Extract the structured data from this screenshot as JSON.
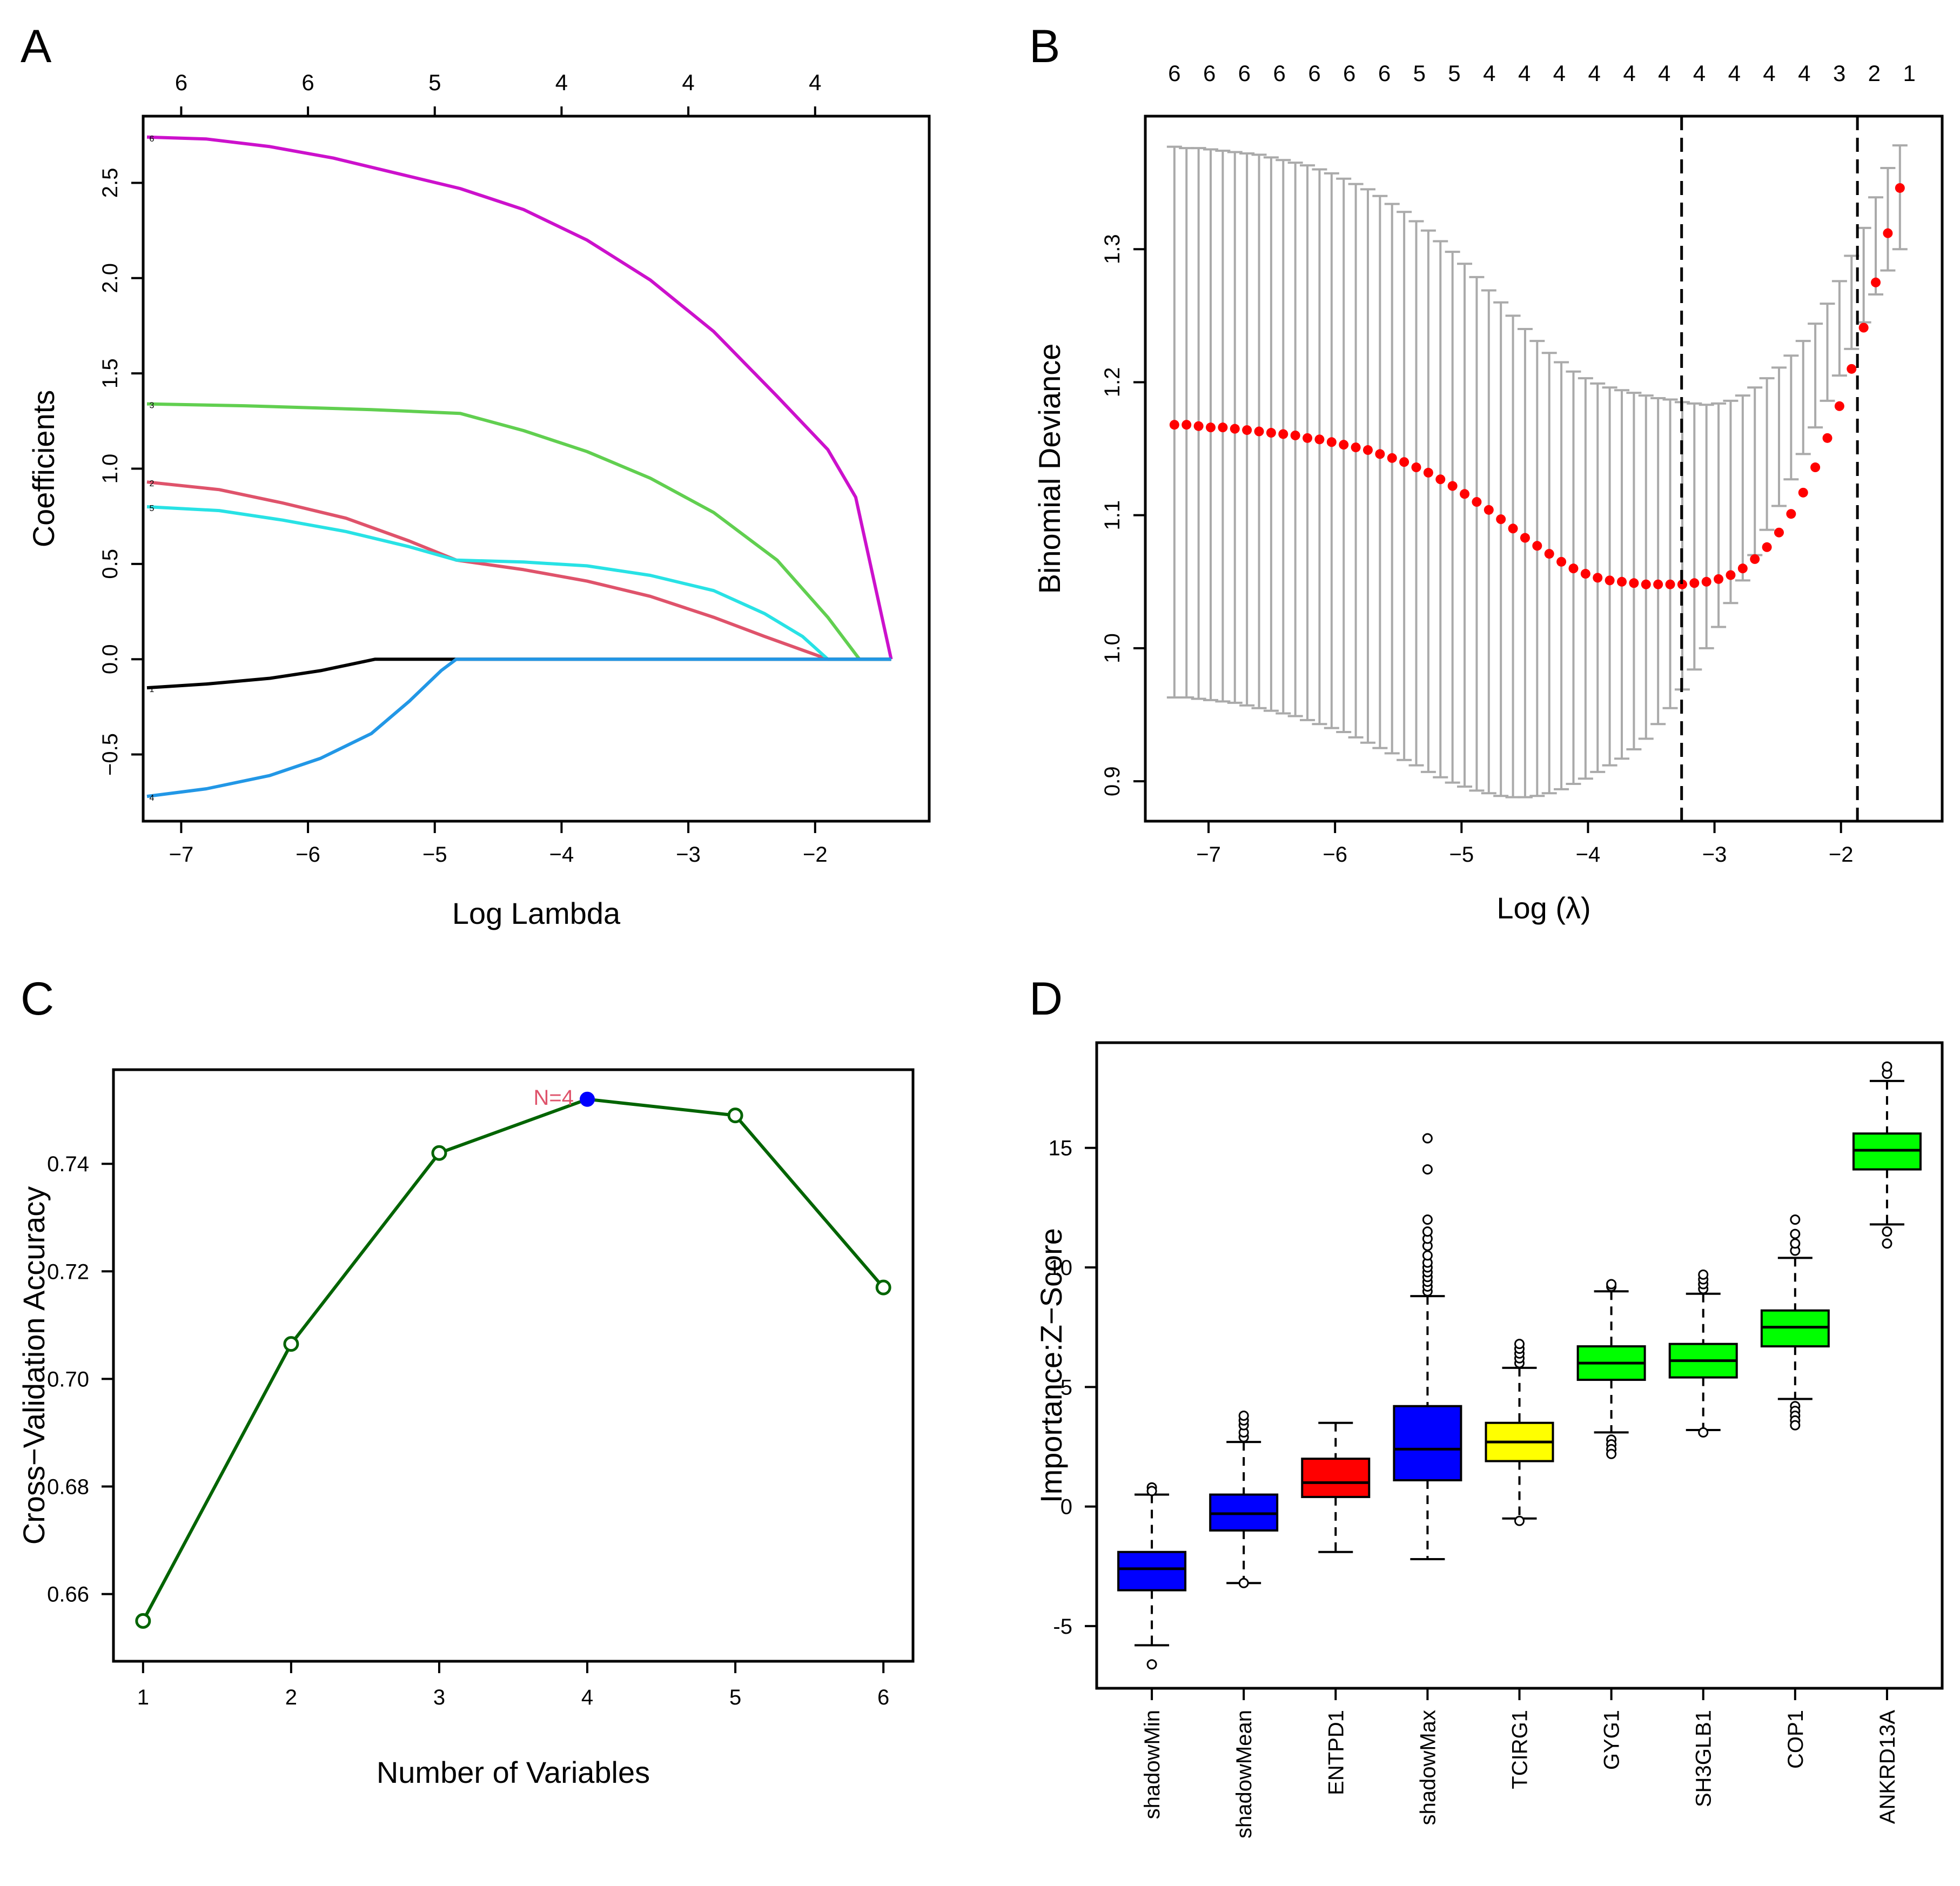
{
  "colors": {
    "magenta": "#cc11cc",
    "green_light": "#61cf50",
    "red_soft": "#df536b",
    "cyan": "#28e2e5",
    "black": "#000000",
    "blue_light": "#2297e6",
    "grey": "#aaaaaa",
    "red_point": "#ff0000",
    "dark_green": "#006400",
    "highlight_blue": "#0000ff",
    "annotation_red": "#df536b",
    "box_blue": "#0000ff",
    "box_red": "#ff0000",
    "box_yellow": "#ffff00",
    "box_green": "#00ff00"
  },
  "chart_data": [
    {
      "panel": "A",
      "type": "line",
      "xlabel": "Log Lambda",
      "ylabel": "Coefficients",
      "xlim": [
        -7.3,
        -1.1
      ],
      "ylim": [
        -0.85,
        2.85
      ],
      "x_ticks": [
        -7,
        -6,
        -5,
        -4,
        -3,
        -2
      ],
      "x_tick_labels": [
        "−7",
        "−6",
        "−5",
        "−4",
        "−3",
        "−2"
      ],
      "y_ticks": [
        -0.5,
        0.0,
        0.5,
        1.0,
        1.5,
        2.0,
        2.5
      ],
      "y_tick_labels": [
        "−0.5",
        "0.0",
        "0.5",
        "1.0",
        "1.5",
        "2.0",
        "2.5"
      ],
      "top_axis": {
        "positions": [
          -7,
          -6,
          -5,
          -4,
          -3,
          -2
        ],
        "labels": [
          "6",
          "6",
          "5",
          "4",
          "4",
          "4"
        ]
      },
      "series": [
        {
          "name": "6",
          "color_key": "magenta",
          "x": [
            -7.27,
            -6.8,
            -6.3,
            -5.8,
            -5.3,
            -4.8,
            -4.3,
            -3.8,
            -3.3,
            -2.8,
            -2.3,
            -1.9,
            -1.68,
            -1.4
          ],
          "y": [
            2.74,
            2.73,
            2.69,
            2.63,
            2.55,
            2.47,
            2.36,
            2.2,
            1.99,
            1.72,
            1.38,
            1.1,
            0.85,
            0.0
          ]
        },
        {
          "name": "3",
          "color_key": "green_light",
          "x": [
            -7.27,
            -6.5,
            -5.5,
            -4.8,
            -4.3,
            -3.8,
            -3.3,
            -2.8,
            -2.3,
            -1.9,
            -1.65,
            -1.4
          ],
          "y": [
            1.34,
            1.33,
            1.31,
            1.29,
            1.2,
            1.09,
            0.95,
            0.77,
            0.52,
            0.22,
            0.0,
            0.0
          ]
        },
        {
          "name": "2",
          "color_key": "red_soft",
          "x": [
            -7.27,
            -6.7,
            -6.2,
            -5.7,
            -5.2,
            -4.83,
            -4.3,
            -3.8,
            -3.3,
            -2.8,
            -2.4,
            -1.9
          ],
          "y": [
            0.93,
            0.89,
            0.82,
            0.74,
            0.62,
            0.52,
            0.47,
            0.41,
            0.33,
            0.22,
            0.12,
            0.0
          ]
        },
        {
          "name": "5",
          "color_key": "cyan",
          "x": [
            -7.27,
            -6.7,
            -6.2,
            -5.7,
            -5.2,
            -4.83,
            -4.3,
            -3.8,
            -3.3,
            -2.8,
            -2.4,
            -2.1,
            -1.9,
            -1.4
          ],
          "y": [
            0.8,
            0.78,
            0.73,
            0.67,
            0.59,
            0.52,
            0.51,
            0.49,
            0.44,
            0.36,
            0.24,
            0.12,
            0.0,
            0.0
          ]
        },
        {
          "name": "1",
          "color_key": "black",
          "x": [
            -7.27,
            -6.8,
            -6.3,
            -5.9,
            -5.47,
            -4.83,
            -1.4
          ],
          "y": [
            -0.15,
            -0.13,
            -0.1,
            -0.06,
            0.0,
            0.0,
            0.0
          ]
        },
        {
          "name": "4",
          "color_key": "blue_light",
          "x": [
            -7.27,
            -6.8,
            -6.3,
            -5.9,
            -5.5,
            -5.2,
            -4.95,
            -4.83,
            -1.4
          ],
          "y": [
            -0.72,
            -0.68,
            -0.61,
            -0.52,
            -0.39,
            -0.22,
            -0.06,
            0.0,
            0.0
          ]
        }
      ]
    },
    {
      "panel": "B",
      "type": "scatter",
      "xlabel": "Log (λ)",
      "ylabel": "Binomial Deviance",
      "xlim": [
        -7.5,
        -1.2
      ],
      "ylim": [
        0.87,
        1.4
      ],
      "x_ticks": [
        -7,
        -6,
        -5,
        -4,
        -3,
        -2
      ],
      "x_tick_labels": [
        "−7",
        "−6",
        "−5",
        "−4",
        "−3",
        "−2"
      ],
      "y_ticks": [
        0.9,
        1.0,
        1.1,
        1.2,
        1.3
      ],
      "y_tick_labels": [
        "0.9",
        "1.0",
        "1.1",
        "1.2",
        "1.3"
      ],
      "x_start": -7.27,
      "x_step": 0.0956,
      "mean": [
        1.168,
        1.168,
        1.167,
        1.166,
        1.166,
        1.165,
        1.164,
        1.163,
        1.162,
        1.161,
        1.16,
        1.158,
        1.157,
        1.155,
        1.153,
        1.151,
        1.149,
        1.146,
        1.143,
        1.14,
        1.136,
        1.132,
        1.127,
        1.122,
        1.116,
        1.11,
        1.104,
        1.097,
        1.09,
        1.083,
        1.077,
        1.071,
        1.065,
        1.06,
        1.056,
        1.053,
        1.051,
        1.05,
        1.049,
        1.048,
        1.048,
        1.048,
        1.048,
        1.049,
        1.05,
        1.052,
        1.055,
        1.06,
        1.067,
        1.076,
        1.087,
        1.101,
        1.117,
        1.136,
        1.158,
        1.182,
        1.21,
        1.241,
        1.275,
        1.312,
        1.346
      ],
      "upper": [
        1.377,
        1.376,
        1.376,
        1.375,
        1.374,
        1.373,
        1.372,
        1.371,
        1.369,
        1.367,
        1.365,
        1.363,
        1.36,
        1.357,
        1.353,
        1.349,
        1.345,
        1.34,
        1.334,
        1.328,
        1.321,
        1.314,
        1.306,
        1.298,
        1.289,
        1.279,
        1.269,
        1.26,
        1.25,
        1.24,
        1.231,
        1.222,
        1.215,
        1.208,
        1.203,
        1.199,
        1.196,
        1.194,
        1.192,
        1.19,
        1.188,
        1.187,
        1.185,
        1.184,
        1.183,
        1.184,
        1.186,
        1.19,
        1.196,
        1.203,
        1.211,
        1.22,
        1.231,
        1.244,
        1.259,
        1.276,
        1.295,
        1.316,
        1.339,
        1.361,
        1.378
      ],
      "lower": [
        0.963,
        0.963,
        0.962,
        0.961,
        0.96,
        0.959,
        0.957,
        0.955,
        0.953,
        0.951,
        0.949,
        0.946,
        0.943,
        0.94,
        0.937,
        0.933,
        0.929,
        0.925,
        0.921,
        0.916,
        0.912,
        0.907,
        0.903,
        0.899,
        0.896,
        0.893,
        0.891,
        0.889,
        0.888,
        0.888,
        0.889,
        0.891,
        0.894,
        0.898,
        0.902,
        0.907,
        0.912,
        0.917,
        0.924,
        0.932,
        0.943,
        0.955,
        0.969,
        0.984,
        1.0,
        1.016,
        1.034,
        1.051,
        1.07,
        1.089,
        1.107,
        1.127,
        1.146,
        1.166,
        1.186,
        1.205,
        1.225,
        1.245,
        1.266,
        1.284,
        1.3
      ],
      "top_axis": {
        "labels": [
          "6",
          "6",
          "6",
          "6",
          "6",
          "6",
          "6",
          "5",
          "5",
          "4",
          "4",
          "4",
          "4",
          "4",
          "4",
          "4",
          "4",
          "4",
          "4",
          "3",
          "2",
          "1"
        ],
        "positions": [
          -7.27,
          -6.993,
          -6.717,
          -6.44,
          -6.163,
          -5.887,
          -5.61,
          -5.333,
          -5.057,
          -4.78,
          -4.503,
          -4.227,
          -3.95,
          -3.673,
          -3.397,
          -3.12,
          -2.843,
          -2.567,
          -2.29,
          -2.013,
          -1.737,
          -1.46
        ]
      },
      "vlines": [
        -3.26,
        -1.87
      ]
    },
    {
      "panel": "C",
      "type": "line",
      "xlabel": "Number of Variables",
      "ylabel": "Cross−Validation Accuracy",
      "xlim": [
        0.8,
        6.2
      ],
      "ylim": [
        0.6475,
        0.7575
      ],
      "x_ticks": [
        1,
        2,
        3,
        4,
        5,
        6
      ],
      "x_tick_labels": [
        "1",
        "2",
        "3",
        "4",
        "5",
        "6"
      ],
      "y_ticks": [
        0.66,
        0.68,
        0.7,
        0.72,
        0.74
      ],
      "y_tick_labels": [
        "0.66",
        "0.68",
        "0.70",
        "0.72",
        "0.74"
      ],
      "x": [
        1,
        2,
        3,
        4,
        5,
        6
      ],
      "y": [
        0.655,
        0.7065,
        0.742,
        0.752,
        0.749,
        0.717
      ],
      "highlight_index": 3,
      "annotation": "N=4"
    },
    {
      "panel": "D",
      "type": "box",
      "xlabel": "",
      "ylabel": "Importance:Z−Score",
      "ylim": [
        -7.6,
        19.4
      ],
      "y_ticks": [
        -5,
        0,
        5,
        10,
        15
      ],
      "y_tick_labels": [
        "-5",
        "0",
        "5",
        "10",
        "15"
      ],
      "categories": [
        "shadowMin",
        "shadowMean",
        "ENTPD1",
        "shadowMax",
        "TCIRG1",
        "GYG1",
        "SH3GLB1",
        "COP1",
        "ANKRD13A"
      ],
      "boxes": [
        {
          "min": -5.8,
          "q1": -3.5,
          "median": -2.6,
          "q3": -1.9,
          "max": 0.5,
          "outliers": [
            0.8,
            0.65,
            -6.6
          ],
          "color_key": "box_blue"
        },
        {
          "min": -3.2,
          "q1": -1.0,
          "median": -0.3,
          "q3": 0.5,
          "max": 2.7,
          "outliers": [
            2.9,
            3.1,
            3.4,
            3.6,
            3.8,
            -3.2
          ],
          "color_key": "box_blue"
        },
        {
          "min": -1.9,
          "q1": 0.4,
          "median": 1.0,
          "q3": 2.0,
          "max": 3.5,
          "outliers": [],
          "color_key": "box_red"
        },
        {
          "min": -2.2,
          "q1": 1.1,
          "median": 2.4,
          "q3": 4.2,
          "max": 8.8,
          "outliers": [
            9.0,
            9.2,
            9.4,
            9.6,
            9.8,
            10.0,
            10.2,
            10.5,
            10.9,
            11.2,
            11.5,
            12.0,
            14.1,
            15.4
          ],
          "color_key": "box_blue"
        },
        {
          "min": -0.5,
          "q1": 1.9,
          "median": 2.7,
          "q3": 3.5,
          "max": 5.8,
          "outliers": [
            6.0,
            6.2,
            6.4,
            6.6,
            6.8,
            -0.6
          ],
          "color_key": "box_yellow"
        },
        {
          "min": 3.1,
          "q1": 5.3,
          "median": 6.0,
          "q3": 6.7,
          "max": 9.0,
          "outliers": [
            9.2,
            9.3,
            2.8,
            2.6,
            2.4,
            2.2
          ],
          "color_key": "box_green"
        },
        {
          "min": 3.2,
          "q1": 5.4,
          "median": 6.1,
          "q3": 6.8,
          "max": 8.9,
          "outliers": [
            9.1,
            9.3,
            9.5,
            9.7,
            3.1
          ],
          "color_key": "box_green"
        },
        {
          "min": 4.5,
          "q1": 6.7,
          "median": 7.5,
          "q3": 8.2,
          "max": 10.4,
          "outliers": [
            10.7,
            11.0,
            11.4,
            12.0,
            4.2,
            4.0,
            3.8,
            3.6,
            3.4
          ],
          "color_key": "box_green"
        },
        {
          "min": 11.8,
          "q1": 14.1,
          "median": 14.9,
          "q3": 15.6,
          "max": 17.8,
          "outliers": [
            18.1,
            18.4,
            11.5,
            11.0
          ],
          "color_key": "box_green"
        }
      ]
    }
  ]
}
